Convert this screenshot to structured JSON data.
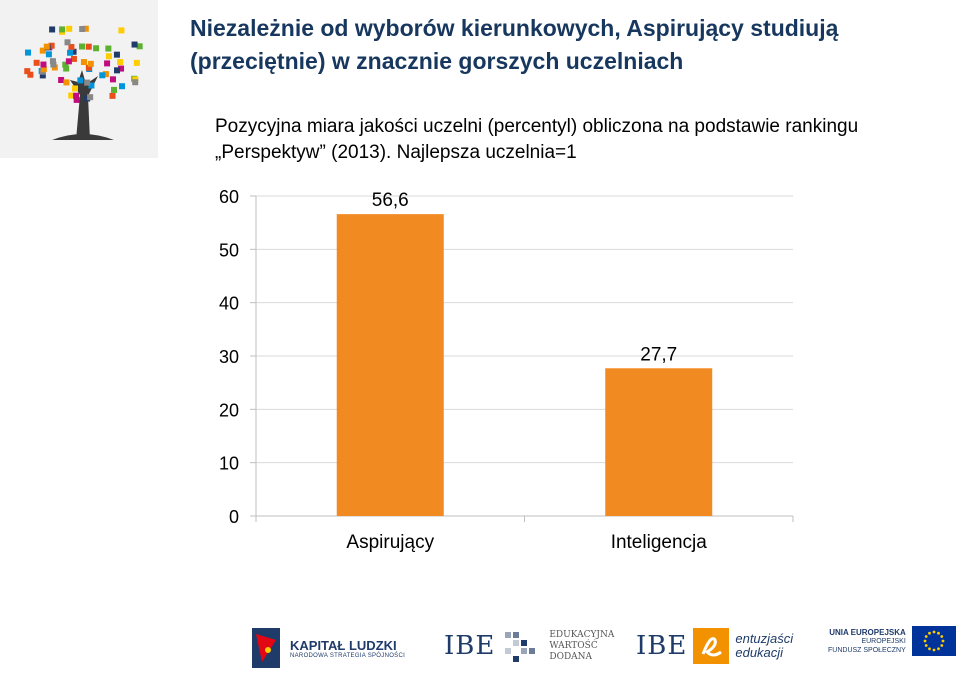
{
  "title": "Niezależnie od wyborów kierunkowych, Aspirujący studiują (przeciętnie) w znacznie gorszych uczelniach",
  "subtitle": "Pozycyjna miara jakości uczelni (percentyl) obliczona na podstawie rankingu „Perspektyw” (2013). Najlepsza uczelnia=1",
  "chart_data": {
    "type": "bar",
    "categories": [
      "Aspirujący",
      "Inteligencja"
    ],
    "values": [
      56.6,
      27.7
    ],
    "value_labels": [
      "56,6",
      "27,7"
    ],
    "ylim": [
      0,
      60
    ],
    "yticks": [
      0,
      10,
      20,
      30,
      40,
      50,
      60
    ],
    "grid": true,
    "bar_color": "#f28a22",
    "grid_color": "#d9d9d9"
  },
  "footer": {
    "kapital_ludzki": "KAPITAŁ LUDZKI",
    "kapital_ludzki_sub": "NARODOWA STRATEGIA SPÓJNOŚCI",
    "ibe": "IBE",
    "edukacyjna_wartosc": [
      "EDUKACYJNA",
      "WARTOŚĆ",
      "DODANA"
    ],
    "entuzjasci": [
      "entuzjaści",
      "edukacji"
    ],
    "unia": "UNIA EUROPEJSKA",
    "fundusz": [
      "EUROPEJSKI",
      "FUNDUSZ SPOŁECZNY"
    ]
  },
  "colors": {
    "title": "#17375e",
    "bar": "#f28a22",
    "ibe_square": "#f39200",
    "eu_blue": "#003399",
    "eu_star": "#ffcc00"
  }
}
